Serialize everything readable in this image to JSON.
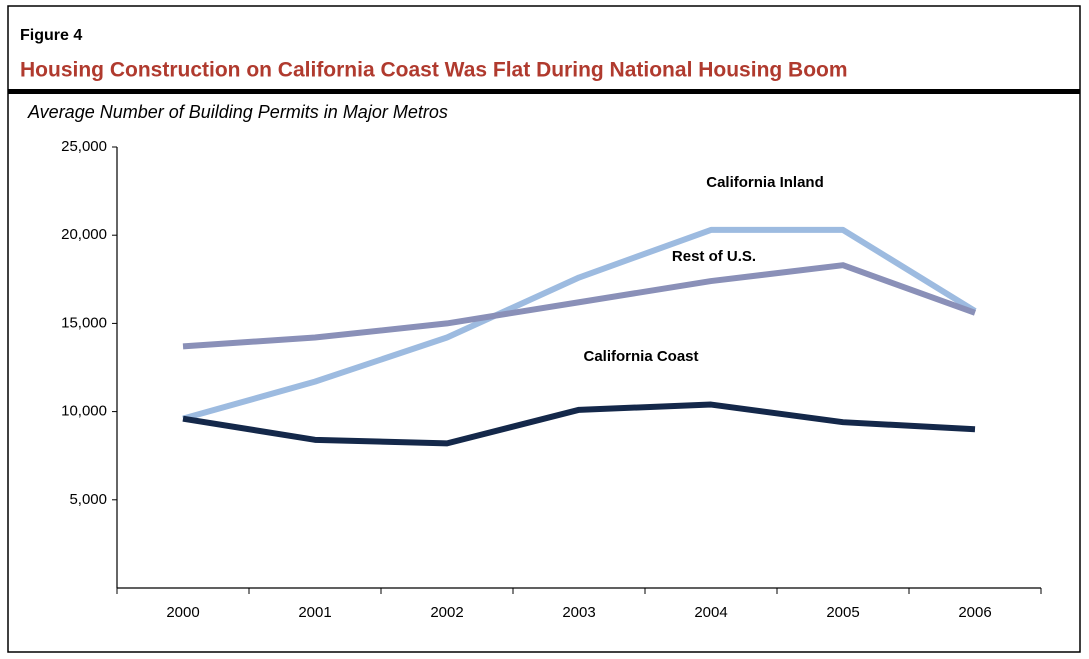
{
  "chart_data": {
    "type": "line",
    "figure_label": "Figure 4",
    "title": "Housing Construction on California Coast Was Flat During National Housing Boom",
    "subtitle": "Average Number of Building Permits in Major Metros",
    "categories": [
      "2000",
      "2001",
      "2002",
      "2003",
      "2004",
      "2005",
      "2006"
    ],
    "series": [
      {
        "name": "California Inland",
        "color": "#9dbbe0",
        "values": [
          9600,
          11700,
          14200,
          17600,
          20300,
          20300,
          15700
        ]
      },
      {
        "name": "Rest of U.S.",
        "color": "#8a90b8",
        "values": [
          13700,
          14200,
          15000,
          16200,
          17400,
          18300,
          15600
        ]
      },
      {
        "name": "California Coast",
        "color": "#14284a",
        "values": [
          9600,
          8400,
          8200,
          10100,
          10400,
          9400,
          9000
        ]
      }
    ],
    "ylim": [
      0,
      25000
    ],
    "yticks": [
      {
        "value": 5000,
        "label": "5,000"
      },
      {
        "value": 10000,
        "label": "10,000"
      },
      {
        "value": 15000,
        "label": "15,000"
      },
      {
        "value": 20000,
        "label": "20,000"
      },
      {
        "value": 25000,
        "label": "25,000"
      }
    ]
  }
}
